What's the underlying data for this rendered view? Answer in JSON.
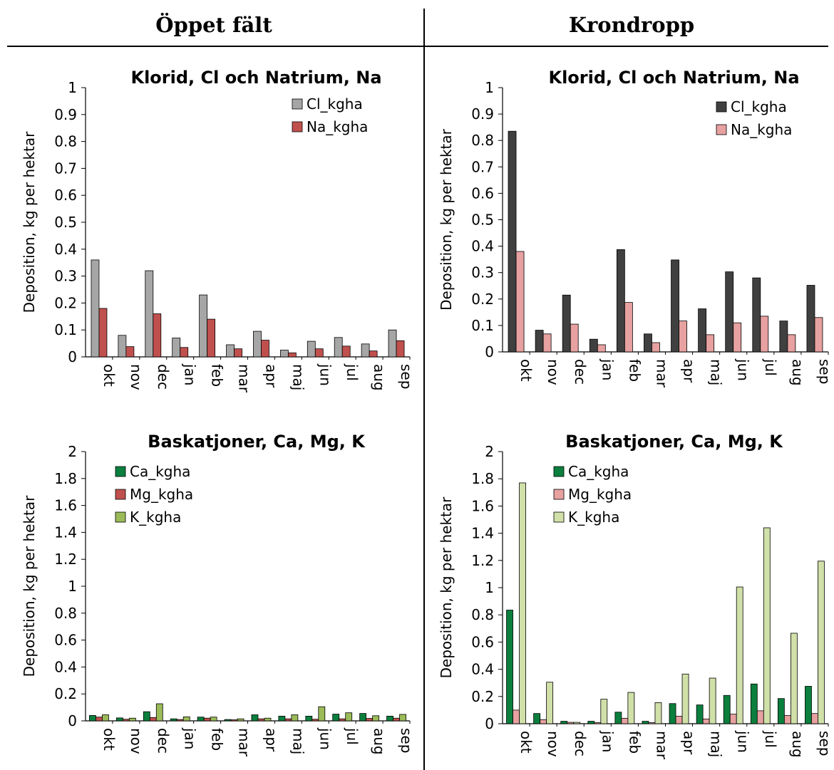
{
  "headers": {
    "left": "Öppet fält",
    "right": "Krondropp"
  },
  "chart_data": [
    {
      "id": "cl-open",
      "type": "bar",
      "title": "Klorid, Cl och Natrium, Na",
      "ylabel": "Deposition, kg per hektar",
      "xlabel": "",
      "ylim": [
        0,
        1
      ],
      "yticks": [
        "0",
        "0.1",
        "0.2",
        "0.3",
        "0.4",
        "0.5",
        "0.6",
        "0.7",
        "0.8",
        "0.9",
        "1"
      ],
      "categories": [
        "okt",
        "nov",
        "dec",
        "jan",
        "feb",
        "mar",
        "apr",
        "maj",
        "jun",
        "jul",
        "aug",
        "sep"
      ],
      "legend_position": "top-right",
      "grid": false,
      "series": [
        {
          "name": "Cl_kgha",
          "color": "#a6a6a6",
          "values": [
            0.36,
            0.08,
            0.32,
            0.07,
            0.23,
            0.045,
            0.095,
            0.025,
            0.058,
            0.072,
            0.048,
            0.1
          ]
        },
        {
          "name": "Na_kgha",
          "color": "#c0504d",
          "values": [
            0.18,
            0.038,
            0.16,
            0.035,
            0.14,
            0.03,
            0.062,
            0.015,
            0.03,
            0.04,
            0.022,
            0.06
          ]
        }
      ]
    },
    {
      "id": "cl-crown",
      "type": "bar",
      "title": "Klorid, Cl och Natrium, Na",
      "ylabel": "Deposition, kg per hektar",
      "xlabel": "",
      "ylim": [
        0,
        1
      ],
      "yticks": [
        "0",
        "0.1",
        "0.2",
        "0.3",
        "0.4",
        "0.5",
        "0.6",
        "0.7",
        "0.8",
        "0.9",
        "1"
      ],
      "categories": [
        "okt",
        "nov",
        "dec",
        "jan",
        "feb",
        "mar",
        "apr",
        "maj",
        "jun",
        "jul",
        "aug",
        "sep"
      ],
      "legend_position": "top-right",
      "grid": false,
      "series": [
        {
          "name": "Cl_kgha",
          "color": "#404040",
          "values": [
            0.835,
            0.082,
            0.215,
            0.048,
            0.387,
            0.068,
            0.348,
            0.163,
            0.303,
            0.28,
            0.117,
            0.252
          ]
        },
        {
          "name": "Na_kgha",
          "color": "#e6a1a0",
          "values": [
            0.38,
            0.068,
            0.105,
            0.027,
            0.187,
            0.035,
            0.117,
            0.065,
            0.11,
            0.135,
            0.065,
            0.13
          ]
        }
      ]
    },
    {
      "id": "cat-open",
      "type": "bar",
      "title": "Baskatjoner, Ca, Mg, K",
      "ylabel": "Deposition, kg per hektar",
      "xlabel": "",
      "ylim": [
        0,
        2
      ],
      "yticks": [
        "0",
        "0.2",
        "0.4",
        "0.6",
        "0.8",
        "1",
        "1.2",
        "1.4",
        "1.6",
        "1.8",
        "2"
      ],
      "categories": [
        "okt",
        "nov",
        "dec",
        "jan",
        "feb",
        "mar",
        "apr",
        "maj",
        "jun",
        "jul",
        "aug",
        "sep"
      ],
      "legend_position": "top-left",
      "grid": false,
      "series": [
        {
          "name": "Ca_kgha",
          "color": "#0b7f3d",
          "values": [
            0.04,
            0.022,
            0.068,
            0.015,
            0.028,
            0.01,
            0.045,
            0.035,
            0.035,
            0.05,
            0.055,
            0.035
          ]
        },
        {
          "name": "Mg_kgha",
          "color": "#c0504d",
          "values": [
            0.028,
            0.012,
            0.025,
            0.01,
            0.02,
            0.008,
            0.015,
            0.015,
            0.012,
            0.015,
            0.018,
            0.02
          ]
        },
        {
          "name": "K_kgha",
          "color": "#9bbb59",
          "values": [
            0.045,
            0.02,
            0.127,
            0.03,
            0.028,
            0.015,
            0.02,
            0.045,
            0.105,
            0.06,
            0.038,
            0.048
          ]
        }
      ]
    },
    {
      "id": "cat-crown",
      "type": "bar",
      "title": "Baskatjoner, Ca, Mg, K",
      "ylabel": "Deposition, kg per hektar",
      "xlabel": "",
      "ylim": [
        0,
        2
      ],
      "yticks": [
        "0",
        "0.2",
        "0.4",
        "0.6",
        "0.8",
        "1",
        "1.2",
        "1.4",
        "1.6",
        "1.8",
        "2"
      ],
      "categories": [
        "okt",
        "nov",
        "dec",
        "jan",
        "feb",
        "mar",
        "apr",
        "maj",
        "jun",
        "jul",
        "aug",
        "sep"
      ],
      "legend_position": "top-left",
      "grid": false,
      "series": [
        {
          "name": "Ca_kgha",
          "color": "#0b7f3d",
          "values": [
            0.835,
            0.075,
            0.018,
            0.018,
            0.085,
            0.018,
            0.148,
            0.138,
            0.208,
            0.292,
            0.185,
            0.275
          ]
        },
        {
          "name": "Mg_kgha",
          "color": "#e6a1a0",
          "values": [
            0.1,
            0.03,
            0.01,
            0.008,
            0.04,
            0.008,
            0.055,
            0.035,
            0.07,
            0.095,
            0.06,
            0.075
          ]
        },
        {
          "name": "K_kgha",
          "color": "#d0e0a8",
          "values": [
            1.77,
            0.305,
            0.01,
            0.18,
            0.23,
            0.155,
            0.365,
            0.335,
            1.005,
            1.44,
            0.665,
            1.195
          ]
        }
      ]
    }
  ]
}
